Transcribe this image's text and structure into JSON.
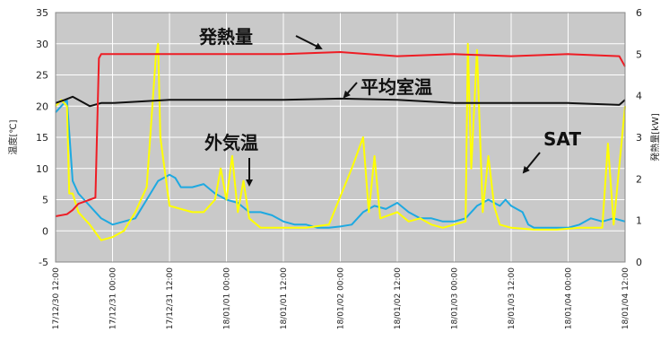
{
  "chart_data": {
    "type": "line",
    "ylabel_left": "温度[℃]",
    "ylabel_right": "発熱量[kW]",
    "ylim_left": [
      -5,
      35
    ],
    "ylim_right": [
      0,
      6
    ],
    "yticks_left": [
      -5,
      0,
      5,
      10,
      15,
      20,
      25,
      30,
      35
    ],
    "yticks_right": [
      0,
      1,
      2,
      3,
      4,
      5,
      6
    ],
    "x_tick_labels": [
      "17/12/30 12:00",
      "17/12/31 00:00",
      "17/12/31 12:00",
      "18/01/01 00:00",
      "18/01/01 12:00",
      "18/01/02 00:00",
      "18/01/02 12:00",
      "18/01/03 00:00",
      "18/01/03 12:00",
      "18/01/04 00:00",
      "18/01/04 12:00"
    ],
    "x_range_days": [
      0,
      5
    ],
    "grid": true,
    "series": [
      {
        "name": "発熱量",
        "axis": "right",
        "color": "#ee1c24",
        "x": [
          0,
          0.1,
          0.15,
          0.2,
          0.25,
          0.3,
          0.35,
          0.38,
          0.4,
          0.5,
          1,
          1.5,
          2,
          2.5,
          3,
          3.5,
          4,
          4.5,
          4.95,
          5
        ],
        "y": [
          1.1,
          1.15,
          1.25,
          1.4,
          1.45,
          1.5,
          1.55,
          4.9,
          5.0,
          5.0,
          5.0,
          5.0,
          5.0,
          5.05,
          4.95,
          5.0,
          4.95,
          5.0,
          4.95,
          4.7
        ]
      },
      {
        "name": "平均室温",
        "axis": "left",
        "color": "#111111",
        "x": [
          0,
          0.08,
          0.15,
          0.25,
          0.3,
          0.4,
          0.5,
          1,
          1.5,
          2,
          2.5,
          3,
          3.5,
          4,
          4.5,
          4.95,
          5
        ],
        "y": [
          20.5,
          21,
          21.5,
          20.5,
          20,
          20.5,
          20.5,
          21,
          21,
          21,
          21.2,
          21,
          20.5,
          20.5,
          20.5,
          20.2,
          21
        ]
      },
      {
        "name": "外気温",
        "axis": "left",
        "color": "#1ea9e1",
        "x": [
          0,
          0.05,
          0.1,
          0.15,
          0.2,
          0.25,
          0.3,
          0.4,
          0.5,
          0.6,
          0.7,
          0.8,
          0.9,
          1.0,
          1.05,
          1.1,
          1.2,
          1.3,
          1.4,
          1.5,
          1.6,
          1.7,
          1.8,
          1.9,
          2.0,
          2.1,
          2.2,
          2.3,
          2.4,
          2.5,
          2.6,
          2.7,
          2.8,
          2.9,
          3.0,
          3.1,
          3.2,
          3.3,
          3.4,
          3.5,
          3.6,
          3.7,
          3.8,
          3.9,
          3.95,
          4.0,
          4.05,
          4.1,
          4.15,
          4.2,
          4.3,
          4.4,
          4.5,
          4.6,
          4.7,
          4.8,
          4.9,
          5.0
        ],
        "y": [
          19,
          20,
          21,
          8,
          6,
          5,
          4,
          2,
          1,
          1.5,
          2,
          5,
          8,
          9,
          8.5,
          7,
          7,
          7.5,
          6,
          5,
          4.5,
          3,
          3,
          2.5,
          1.5,
          1,
          1,
          0.5,
          0.5,
          0.7,
          1,
          3,
          4,
          3.5,
          4.5,
          3,
          2,
          2,
          1.5,
          1.5,
          2,
          4,
          5,
          4,
          5,
          4,
          3.5,
          3,
          1,
          0.5,
          0.5,
          0.5,
          0.5,
          1,
          2,
          1.5,
          2,
          1.5
        ]
      },
      {
        "name": "SAT",
        "axis": "left",
        "color": "#ffff00",
        "x": [
          0,
          0.05,
          0.1,
          0.12,
          0.15,
          0.2,
          0.3,
          0.4,
          0.5,
          0.6,
          0.7,
          0.8,
          0.88,
          0.9,
          0.92,
          1.0,
          1.1,
          1.2,
          1.3,
          1.4,
          1.45,
          1.5,
          1.55,
          1.6,
          1.65,
          1.7,
          1.8,
          1.9,
          2.0,
          2.2,
          2.4,
          2.6,
          2.7,
          2.75,
          2.8,
          2.85,
          3.0,
          3.1,
          3.2,
          3.3,
          3.4,
          3.5,
          3.6,
          3.62,
          3.65,
          3.7,
          3.75,
          3.8,
          3.85,
          3.9,
          4.0,
          4.2,
          4.4,
          4.6,
          4.8,
          4.85,
          4.9,
          5.0
        ],
        "y": [
          20,
          21,
          20,
          6,
          6,
          3,
          1,
          -1.5,
          -1,
          0,
          3,
          7,
          28,
          30,
          15,
          4,
          3.5,
          3,
          3,
          5,
          10,
          5,
          12,
          3,
          8,
          2,
          0.5,
          0.5,
          0.5,
          0.5,
          1,
          10,
          15,
          3,
          12,
          2,
          3,
          1.5,
          2,
          1,
          0.5,
          1,
          1.5,
          30,
          10,
          29,
          3,
          12,
          4,
          1,
          0.5,
          0.2,
          0.2,
          0.5,
          0.5,
          14,
          1,
          20
        ]
      }
    ],
    "annotations": [
      "発熱量",
      "平均室温",
      "外気温",
      "SAT"
    ]
  }
}
